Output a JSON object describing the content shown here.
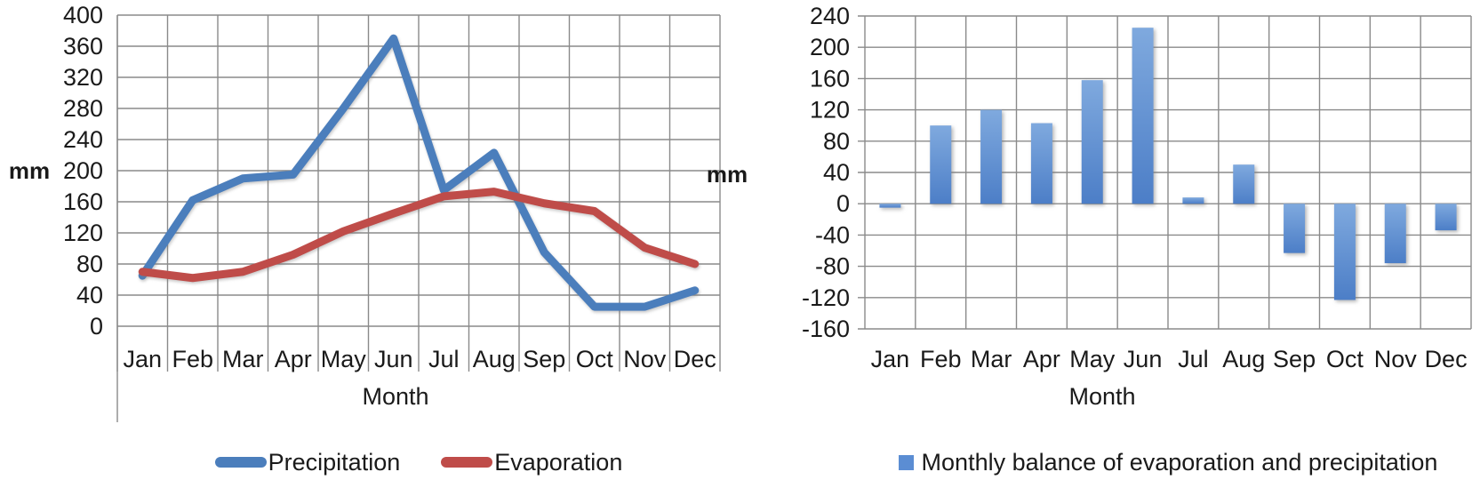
{
  "figure": {
    "months": [
      "Jan",
      "Feb",
      "Mar",
      "Apr",
      "May",
      "Jun",
      "Jul",
      "Aug",
      "Sep",
      "Oct",
      "Nov",
      "Dec"
    ],
    "x_axis_title": "Month",
    "y_axis_title": "mm"
  },
  "colors": {
    "grid": "#8a8a8a",
    "text": "#1a1a1a",
    "precipitation_blue": "#4b7ebc",
    "evaporation_red": "#bf4c49",
    "bar_blue": "#5b8dd3",
    "bar_gradient_top": "#7fa9de",
    "bar_gradient_bottom": "#4c7ec7"
  },
  "chart_data": [
    {
      "type": "line",
      "title": "",
      "categories": [
        "Jan",
        "Feb",
        "Mar",
        "Apr",
        "May",
        "Jun",
        "Jul",
        "Aug",
        "Sep",
        "Oct",
        "Nov",
        "Dec"
      ],
      "xlabel": "Month",
      "ylabel": "mm",
      "ylim": [
        0,
        400
      ],
      "ytick_step": 40,
      "grid": true,
      "legend_position": "bottom",
      "series": [
        {
          "name": "Precipitation",
          "color": "#4b7ebc",
          "values": [
            65,
            162,
            190,
            195,
            280,
            370,
            175,
            223,
            95,
            25,
            25,
            46
          ]
        },
        {
          "name": "Evaporation",
          "color": "#bf4c49",
          "values": [
            70,
            62,
            70,
            92,
            122,
            145,
            167,
            173,
            158,
            148,
            101,
            80
          ]
        }
      ]
    },
    {
      "type": "bar",
      "title": "",
      "categories": [
        "Jan",
        "Feb",
        "Mar",
        "Apr",
        "May",
        "Jun",
        "Jul",
        "Aug",
        "Sep",
        "Oct",
        "Nov",
        "Dec"
      ],
      "xlabel": "Month",
      "ylabel": "mm",
      "ylim": [
        -160,
        240
      ],
      "ytick_step": 40,
      "grid": true,
      "legend_position": "bottom",
      "series": [
        {
          "name": "Monthly balance of evaporation and precipitation",
          "color": "#5b8dd3",
          "values": [
            -5,
            100,
            120,
            103,
            158,
            225,
            8,
            50,
            -63,
            -123,
            -76,
            -34
          ]
        }
      ]
    }
  ]
}
